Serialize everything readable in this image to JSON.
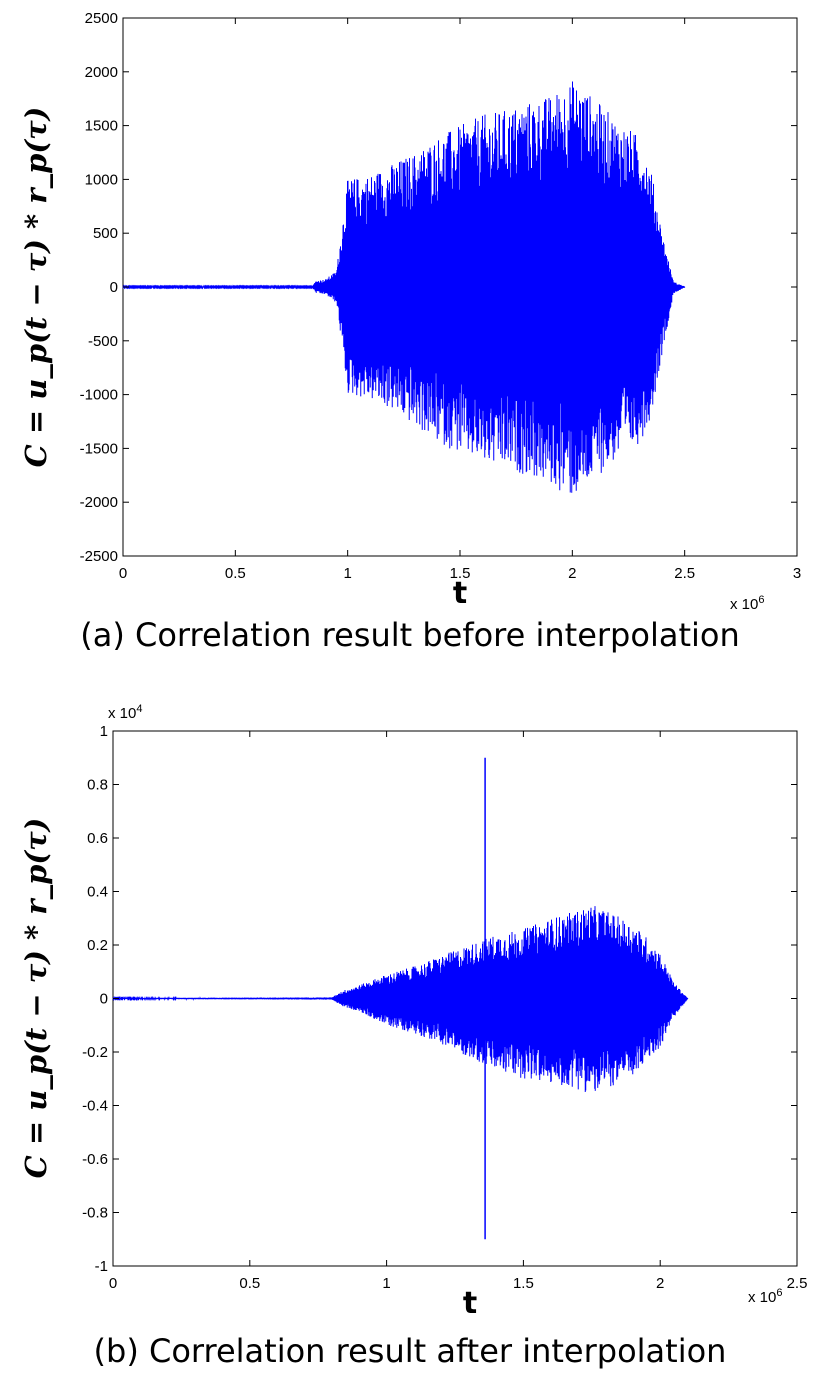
{
  "chart_data": [
    {
      "type": "line",
      "caption": "(a) Correlation result before interpolation",
      "xlabel": "t",
      "ylabel": "C = u_p(t − τ) * r_p(τ)",
      "x_multiplier": "x 10^6",
      "xlim": [
        0,
        3
      ],
      "ylim": [
        -2500,
        2500
      ],
      "xticks": [
        "0",
        "0.5",
        "1",
        "1.5",
        "2",
        "2.5",
        "3"
      ],
      "yticks": [
        "2500",
        "2000",
        "1500",
        "1000",
        "500",
        "0",
        "-500",
        "-1000",
        "-1500",
        "-2000",
        "-2500"
      ],
      "series_color": "#0000ff",
      "envelope": {
        "x": [
          0,
          0.84,
          0.86,
          0.9,
          0.95,
          1.0,
          1.1,
          1.2,
          1.3,
          1.4,
          1.5,
          1.6,
          1.7,
          1.8,
          1.9,
          2.0,
          2.05,
          2.1,
          2.2,
          2.3,
          2.35,
          2.4,
          2.45,
          2.5
        ],
        "upper": [
          5,
          5,
          60,
          70,
          150,
          1000,
          1050,
          1150,
          1250,
          1400,
          1500,
          1600,
          1650,
          1720,
          1780,
          1930,
          1850,
          1750,
          1550,
          1400,
          1100,
          500,
          50,
          5
        ],
        "lower": [
          -5,
          -5,
          -60,
          -70,
          -150,
          -1000,
          -1050,
          -1150,
          -1300,
          -1450,
          -1550,
          -1650,
          -1700,
          -1750,
          -1850,
          -1970,
          -1900,
          -1780,
          -1600,
          -1450,
          -1200,
          -600,
          -60,
          -5
        ]
      }
    },
    {
      "type": "line",
      "caption": "(b) Correlation result after interpolation",
      "xlabel": "t",
      "ylabel": "C = u_p(t − τ) * r_p(τ)",
      "x_multiplier": "x 10^6",
      "y_multiplier": "x 10^4",
      "xlim": [
        0,
        2.5
      ],
      "ylim": [
        -1,
        1
      ],
      "xticks": [
        "0",
        "0.5",
        "1",
        "1.5",
        "2",
        "2.5"
      ],
      "yticks": [
        "1",
        "0.8",
        "0.6",
        "0.4",
        "0.2",
        "0",
        "-0.2",
        "-0.4",
        "-0.6",
        "-0.8",
        "-1"
      ],
      "series_color": "#0000ff",
      "envelope": {
        "x": [
          0,
          0.8,
          0.84,
          0.9,
          1.0,
          1.1,
          1.2,
          1.3,
          1.4,
          1.5,
          1.6,
          1.7,
          1.75,
          1.8,
          1.9,
          1.95,
          2.0,
          2.05,
          2.1
        ],
        "upper": [
          0.002,
          0.004,
          0.03,
          0.05,
          0.09,
          0.12,
          0.16,
          0.2,
          0.24,
          0.26,
          0.3,
          0.33,
          0.35,
          0.33,
          0.28,
          0.23,
          0.17,
          0.06,
          0.002
        ],
        "lower": [
          -0.002,
          -0.004,
          -0.03,
          -0.05,
          -0.1,
          -0.13,
          -0.17,
          -0.22,
          -0.27,
          -0.3,
          -0.32,
          -0.34,
          -0.36,
          -0.34,
          -0.29,
          -0.24,
          -0.18,
          -0.07,
          -0.002
        ]
      },
      "spike": {
        "x": 1.36,
        "y_max": 0.9,
        "y_min": -0.9
      }
    }
  ]
}
